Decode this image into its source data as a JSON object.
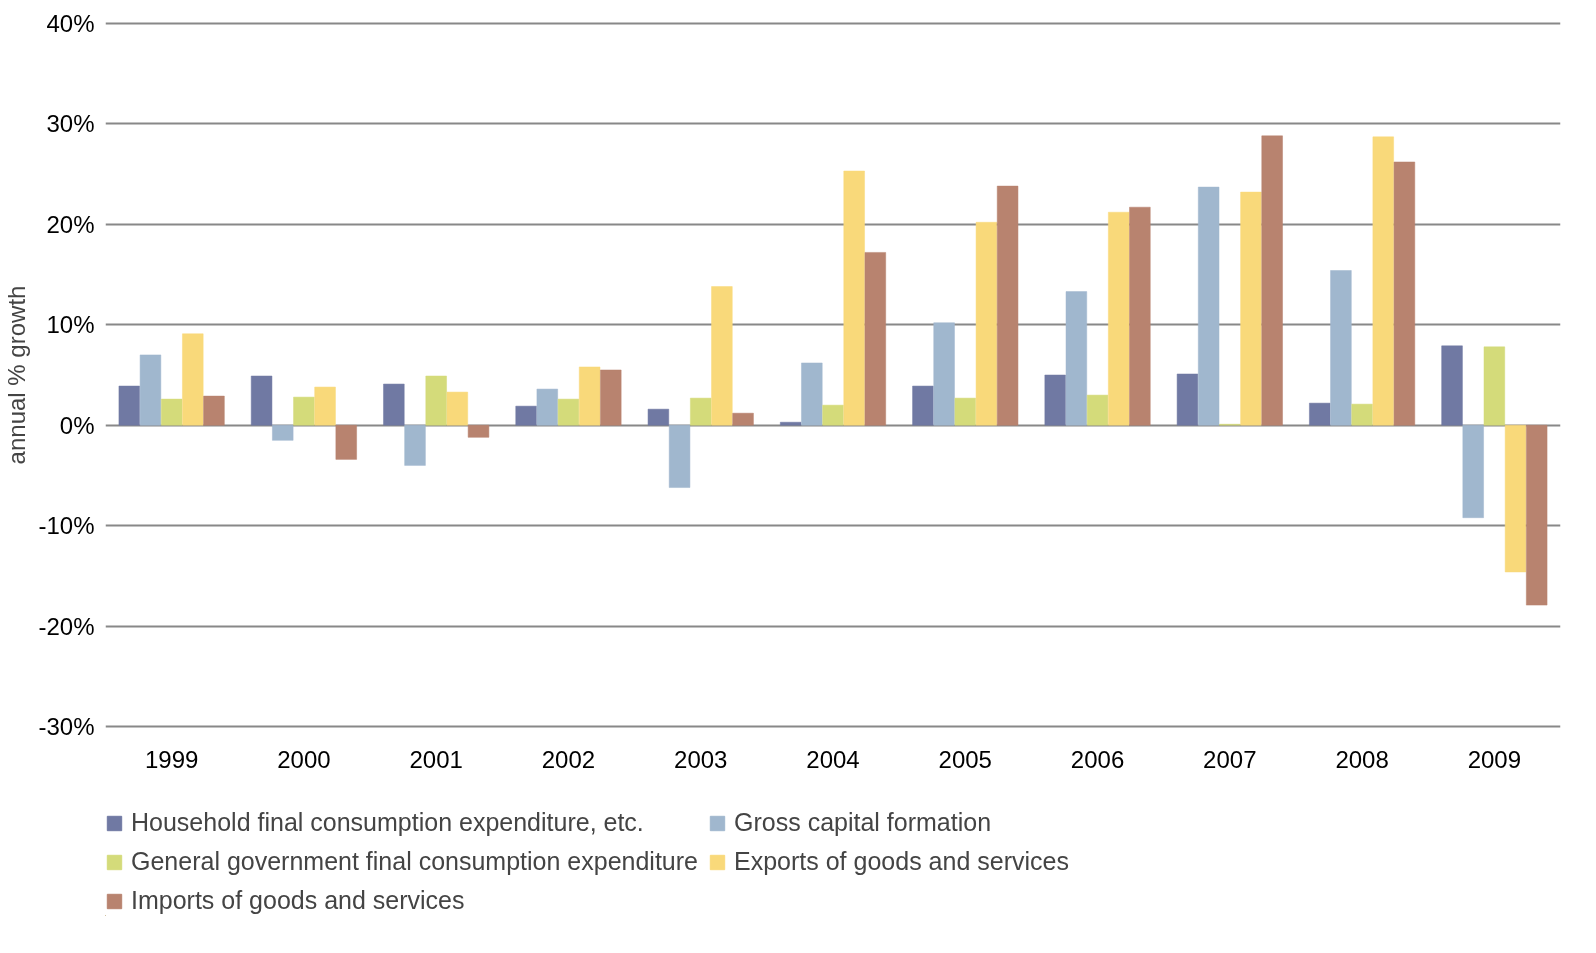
{
  "chart_data": {
    "type": "bar",
    "ylabel": "annual % growth",
    "categories": [
      "1999",
      "2000",
      "2001",
      "2002",
      "2003",
      "2004",
      "2005",
      "2006",
      "2007",
      "2008",
      "2009"
    ],
    "series": [
      {
        "name": "Household final consumption expenditure, etc.",
        "color": "#7079a3",
        "values": [
          3.9,
          4.9,
          4.1,
          1.9,
          1.6,
          0.3,
          3.9,
          5.0,
          5.1,
          2.2,
          7.9
        ]
      },
      {
        "name": "Gross capital formation",
        "color": "#a0b7ce",
        "values": [
          7.0,
          -1.5,
          -4.0,
          3.6,
          -6.2,
          6.2,
          10.2,
          13.3,
          23.7,
          15.4,
          -9.2
        ]
      },
      {
        "name": "General government final consumption expenditure",
        "color": "#d4db7a",
        "values": [
          2.6,
          2.8,
          4.9,
          2.6,
          2.7,
          2.0,
          2.7,
          3.0,
          0.1,
          2.1,
          7.8
        ]
      },
      {
        "name": "Exports of goods and services",
        "color": "#f9d97a",
        "values": [
          9.1,
          3.8,
          3.3,
          5.8,
          13.8,
          25.3,
          20.2,
          21.2,
          23.2,
          28.7,
          -14.6
        ]
      },
      {
        "name": "Imports of goods and services",
        "color": "#b8836f",
        "values": [
          2.9,
          -3.4,
          -1.2,
          5.5,
          1.2,
          17.2,
          23.8,
          21.7,
          28.8,
          26.2,
          -17.9
        ]
      }
    ],
    "ylim": [
      -30,
      40
    ],
    "yticks": [
      {
        "value": -30,
        "label": "-30%"
      },
      {
        "value": -20,
        "label": "-20%"
      },
      {
        "value": -10,
        "label": "-10%"
      },
      {
        "value": 0,
        "label": "0%"
      },
      {
        "value": 10,
        "label": "10%"
      },
      {
        "value": 20,
        "label": "20%"
      },
      {
        "value": 30,
        "label": "30%"
      },
      {
        "value": 40,
        "label": "40%"
      }
    ],
    "grid": "y",
    "legend": "bottom"
  }
}
